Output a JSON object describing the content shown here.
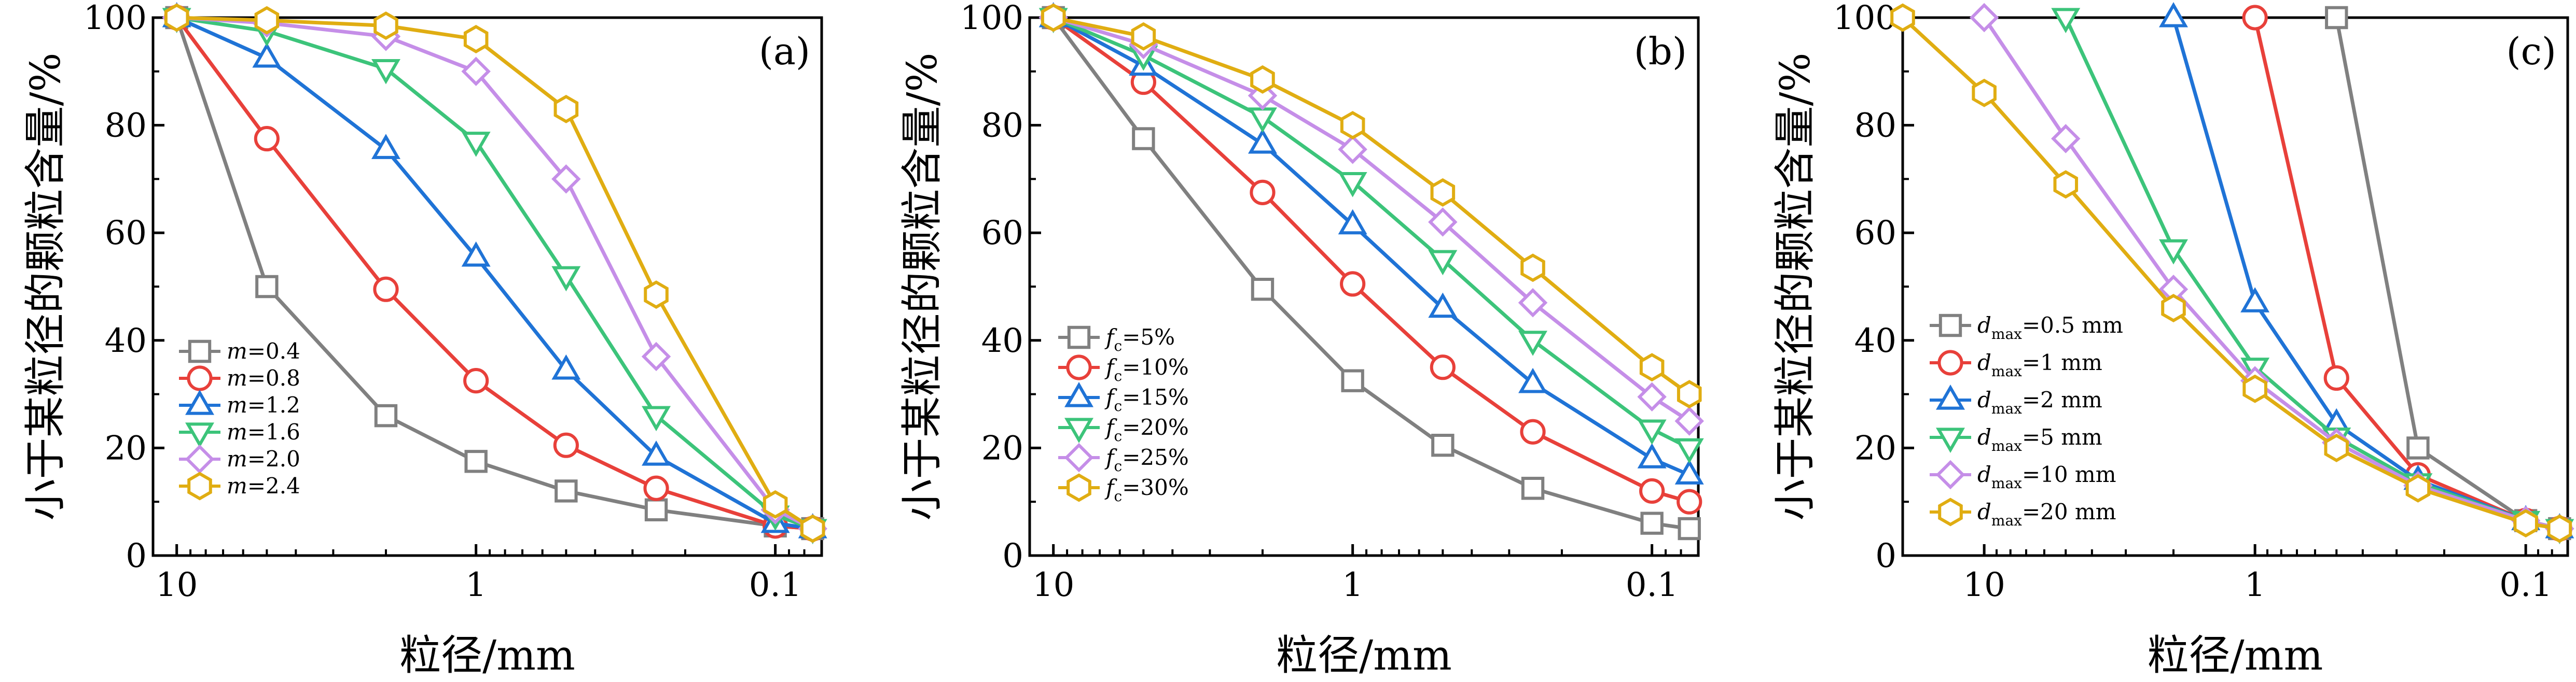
{
  "colors": {
    "gray": "#808080",
    "red": "#e8403a",
    "blue": "#1f73d6",
    "green": "#3cc47a",
    "violet": "#c58ee8",
    "gold": "#e0ad12"
  },
  "chart_data": [
    {
      "type": "line",
      "panel_label": "(a)",
      "xlabel": "粒径/mm",
      "ylabel": "小于某粒径的颗粒含量/%",
      "x_scale": "log",
      "x_reversed": true,
      "xlim": [
        12,
        0.07
      ],
      "ylim": [
        0,
        100
      ],
      "x_ticks": [
        10,
        1,
        0.1
      ],
      "x_tick_labels": [
        "10",
        "1",
        "0.1"
      ],
      "y_ticks": [
        0,
        20,
        40,
        60,
        80,
        100
      ],
      "y_tick_labels": [
        "0",
        "20",
        "40",
        "60",
        "80",
        "100"
      ],
      "legend_position": "lower-left",
      "x": [
        10,
        5,
        2,
        1,
        0.5,
        0.25,
        0.1,
        0.075
      ],
      "series": [
        {
          "name_prefix": "m",
          "name_sub": "",
          "name_suffix": "=0.4",
          "color_key": "gray",
          "marker": "square",
          "values": [
            100,
            50,
            26,
            17.5,
            12,
            8.5,
            5.5,
            5
          ]
        },
        {
          "name_prefix": "m",
          "name_sub": "",
          "name_suffix": "=0.8",
          "color_key": "red",
          "marker": "circle",
          "values": [
            100,
            77.5,
            49.5,
            32.5,
            20.5,
            12.5,
            5.5,
            5
          ]
        },
        {
          "name_prefix": "m",
          "name_sub": "",
          "name_suffix": "=1.2",
          "color_key": "blue",
          "marker": "triangle-up",
          "values": [
            100,
            92.5,
            75.5,
            55.5,
            34.5,
            18.5,
            6,
            5
          ]
        },
        {
          "name_prefix": "m",
          "name_sub": "",
          "name_suffix": "=1.6",
          "color_key": "green",
          "marker": "triangle-down",
          "values": [
            100,
            97.5,
            90.5,
            77,
            52,
            26,
            7.5,
            5
          ]
        },
        {
          "name_prefix": "m",
          "name_sub": "",
          "name_suffix": "=2.0",
          "color_key": "violet",
          "marker": "diamond",
          "values": [
            100,
            99,
            96.5,
            90,
            70,
            37,
            8.5,
            5
          ]
        },
        {
          "name_prefix": "m",
          "name_sub": "",
          "name_suffix": "=2.4",
          "color_key": "gold",
          "marker": "hexagon",
          "values": [
            100,
            99.5,
            98.5,
            96,
            83,
            48.5,
            9.5,
            5
          ]
        }
      ]
    },
    {
      "type": "line",
      "panel_label": "(b)",
      "xlabel": "粒径/mm",
      "ylabel": "小于某粒径的颗粒含量/%",
      "x_scale": "log",
      "x_reversed": true,
      "xlim": [
        12,
        0.07
      ],
      "ylim": [
        0,
        100
      ],
      "x_ticks": [
        10,
        1,
        0.1
      ],
      "x_tick_labels": [
        "10",
        "1",
        "0.1"
      ],
      "y_ticks": [
        0,
        20,
        40,
        60,
        80,
        100
      ],
      "y_tick_labels": [
        "0",
        "20",
        "40",
        "60",
        "80",
        "100"
      ],
      "legend_position": "lower-left",
      "x": [
        10,
        5,
        2,
        1,
        0.5,
        0.25,
        0.1,
        0.075
      ],
      "series": [
        {
          "name_prefix": "f",
          "name_sub": "c",
          "name_suffix": "=5%",
          "color_key": "gray",
          "marker": "square",
          "values": [
            100,
            77.5,
            49.5,
            32.5,
            20.5,
            12.5,
            6,
            5
          ]
        },
        {
          "name_prefix": "f",
          "name_sub": "c",
          "name_suffix": "=10%",
          "color_key": "red",
          "marker": "circle",
          "values": [
            100,
            88,
            67.5,
            50.5,
            35,
            23,
            12,
            10
          ]
        },
        {
          "name_prefix": "f",
          "name_sub": "c",
          "name_suffix": "=15%",
          "color_key": "blue",
          "marker": "triangle-up",
          "values": [
            100,
            91,
            76.5,
            61.5,
            46,
            32,
            18,
            15
          ]
        },
        {
          "name_prefix": "f",
          "name_sub": "c",
          "name_suffix": "=20%",
          "color_key": "green",
          "marker": "triangle-down",
          "values": [
            100,
            93,
            81.5,
            69.5,
            55,
            40,
            23.5,
            20
          ]
        },
        {
          "name_prefix": "f",
          "name_sub": "c",
          "name_suffix": "=25%",
          "color_key": "violet",
          "marker": "diamond",
          "values": [
            100,
            95,
            85.5,
            75.5,
            62,
            47,
            29.5,
            25
          ]
        },
        {
          "name_prefix": "f",
          "name_sub": "c",
          "name_suffix": "=30%",
          "color_key": "gold",
          "marker": "hexagon",
          "values": [
            100,
            96.5,
            88.5,
            80,
            67.5,
            53.5,
            35,
            30
          ]
        }
      ]
    },
    {
      "type": "line",
      "panel_label": "(c)",
      "xlabel": "粒径/mm",
      "ylabel": "小于某粒径的颗粒含量/%",
      "x_scale": "log",
      "x_reversed": true,
      "xlim": [
        20,
        0.07
      ],
      "ylim": [
        0,
        100
      ],
      "x_ticks": [
        10,
        1,
        0.1
      ],
      "x_tick_labels": [
        "10",
        "1",
        "0.1"
      ],
      "y_ticks": [
        0,
        20,
        40,
        60,
        80,
        100
      ],
      "y_tick_labels": [
        "0",
        "20",
        "40",
        "60",
        "80",
        "100"
      ],
      "legend_position": "lower-left",
      "series": [
        {
          "name_prefix": "d",
          "name_sub": "max",
          "name_suffix": "=0.5 mm",
          "color_key": "gray",
          "marker": "square",
          "x": [
            0.5,
            0.25,
            0.1,
            0.075
          ],
          "values": [
            100,
            20,
            6.5,
            5
          ]
        },
        {
          "name_prefix": "d",
          "name_sub": "max",
          "name_suffix": "=1 mm",
          "color_key": "red",
          "marker": "circle",
          "x": [
            1,
            0.5,
            0.25,
            0.1,
            0.075
          ],
          "values": [
            100,
            33,
            15,
            6.5,
            5
          ]
        },
        {
          "name_prefix": "d",
          "name_sub": "max",
          "name_suffix": "=2 mm",
          "color_key": "blue",
          "marker": "triangle-up",
          "x": [
            2,
            1,
            0.5,
            0.25,
            0.1,
            0.075
          ],
          "values": [
            100,
            47,
            24.5,
            14,
            6.5,
            5
          ]
        },
        {
          "name_prefix": "d",
          "name_sub": "max",
          "name_suffix": "=5 mm",
          "color_key": "green",
          "marker": "triangle-down",
          "x": [
            5,
            2,
            1,
            0.5,
            0.25,
            0.1,
            0.075
          ],
          "values": [
            100,
            57,
            35,
            22,
            13.5,
            6.5,
            5
          ]
        },
        {
          "name_prefix": "d",
          "name_sub": "max",
          "name_suffix": "=10 mm",
          "color_key": "violet",
          "marker": "diamond",
          "x": [
            10,
            5,
            2,
            1,
            0.5,
            0.25,
            0.1,
            0.075
          ],
          "values": [
            100,
            77.5,
            49.5,
            32.5,
            21,
            13,
            6.5,
            5
          ]
        },
        {
          "name_prefix": "d",
          "name_sub": "max",
          "name_suffix": "=20 mm",
          "color_key": "gold",
          "marker": "hexagon",
          "x": [
            20,
            10,
            5,
            2,
            1,
            0.5,
            0.25,
            0.1,
            0.075
          ],
          "values": [
            100,
            86,
            69,
            46,
            31,
            20,
            12.5,
            6,
            5
          ]
        }
      ]
    }
  ]
}
